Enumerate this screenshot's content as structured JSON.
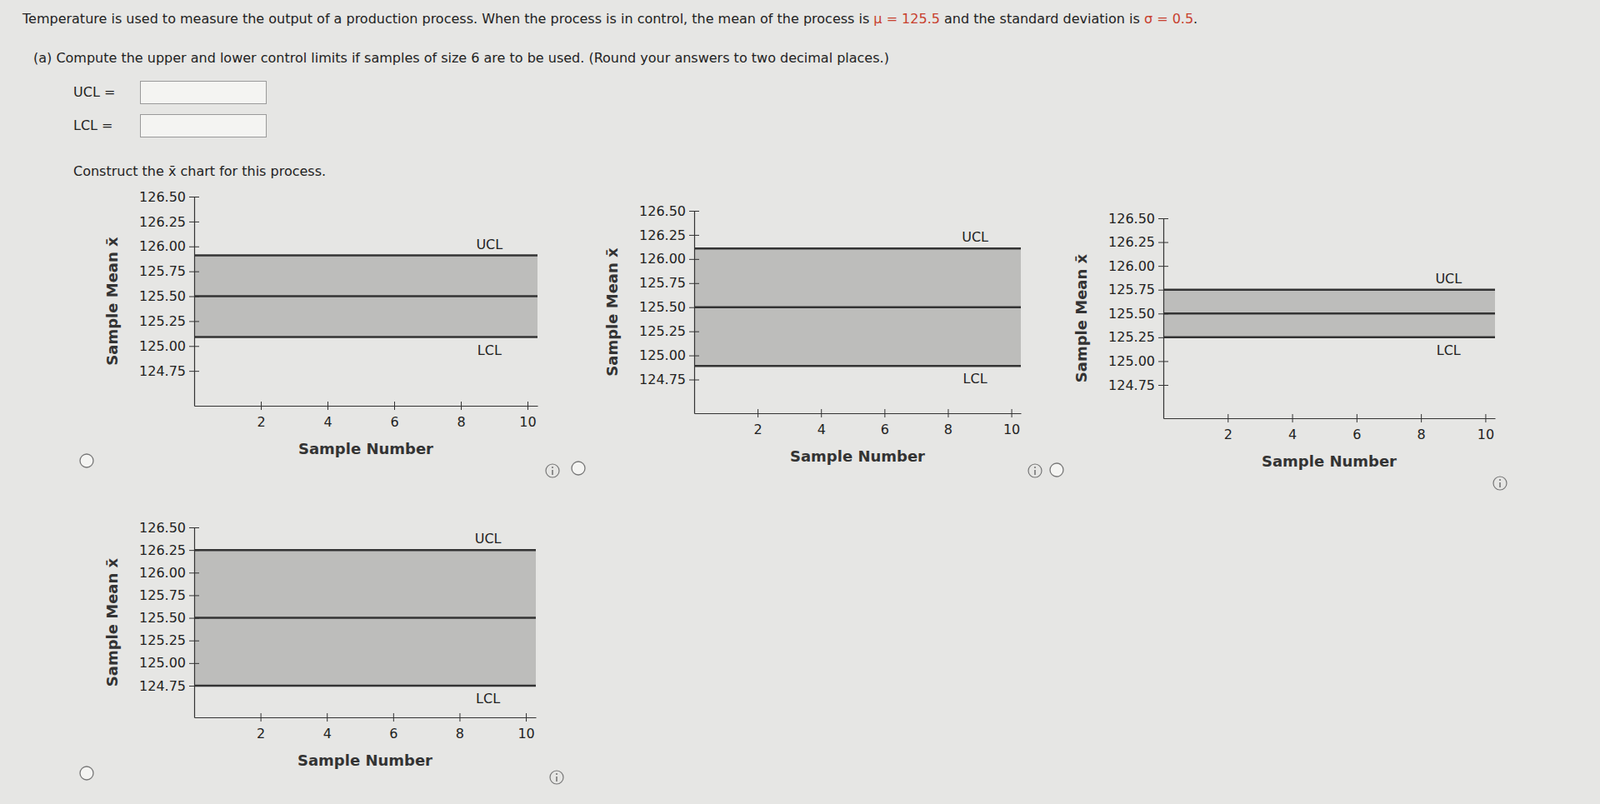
{
  "question": {
    "intro": "Temperature is used to measure the output of a production process. When the process is in control, the mean of the process is ",
    "mu": "μ = 125.5",
    "mid": " and the standard deviation is ",
    "sigma": "σ = 0.5",
    "end": "."
  },
  "part_a": {
    "prompt": "(a)  Compute the upper and lower control limits if samples of size 6 are to be used. (Round your answers to two decimal places.)",
    "ucl_label": "UCL =",
    "lcl_label": "LCL =",
    "chart_prompt": "Construct the x̄ chart for this process."
  },
  "chart_data": [
    {
      "type": "line",
      "x_label": "Sample Number",
      "y_label": "Sample Mean x̄",
      "x": [
        0,
        10.3
      ],
      "series": [
        {
          "name": "UCL",
          "color": "#333333",
          "values": [
            125.91,
            125.91
          ]
        },
        {
          "color": "#333333",
          "values": [
            125.5,
            125.5
          ]
        },
        {
          "name": "LCL",
          "color": "#333333",
          "values": [
            125.09,
            125.09
          ]
        }
      ],
      "xlim": [
        0,
        10.3
      ],
      "ylim": [
        124.4,
        126.5
      ],
      "xticks": [
        2,
        4,
        6,
        8,
        10
      ],
      "yticks": [
        124.75,
        {
          "value": 125,
          "label": "125.00"
        },
        125.25,
        {
          "value": 125.5,
          "label": "125.50"
        },
        125.75,
        {
          "value": 126,
          "label": "126.00"
        },
        126.25,
        {
          "value": 126.5,
          "label": "126.50"
        }
      ]
    },
    {
      "type": "line",
      "x_label": "Sample Number",
      "y_label": "Sample Mean x̄",
      "x": [
        0,
        10.3
      ],
      "series": [
        {
          "name": "UCL",
          "color": "#333333",
          "values": [
            126.11,
            126.11
          ]
        },
        {
          "color": "#333333",
          "values": [
            125.5,
            125.5
          ]
        },
        {
          "name": "LCL",
          "color": "#333333",
          "values": [
            124.89,
            124.89
          ]
        }
      ],
      "xlim": [
        0,
        10.3
      ],
      "ylim": [
        124.4,
        126.5
      ],
      "xticks": [
        2,
        4,
        6,
        8,
        10
      ],
      "yticks": [
        124.75,
        {
          "value": 125,
          "label": "125.00"
        },
        125.25,
        {
          "value": 125.5,
          "label": "125.50"
        },
        125.75,
        {
          "value": 126,
          "label": "126.00"
        },
        126.25,
        {
          "value": 126.5,
          "label": "126.50"
        }
      ]
    },
    {
      "type": "line",
      "x_label": "Sample Number",
      "y_label": "Sample Mean x̄",
      "x": [
        0,
        10.3
      ],
      "series": [
        {
          "name": "UCL",
          "color": "#333333",
          "values": [
            125.75,
            125.75
          ]
        },
        {
          "color": "#333333",
          "values": [
            125.5,
            125.5
          ]
        },
        {
          "name": "LCL",
          "color": "#333333",
          "values": [
            125.25,
            125.25
          ]
        }
      ],
      "xlim": [
        0,
        10.3
      ],
      "ylim": [
        124.4,
        126.5
      ],
      "xticks": [
        2,
        4,
        6,
        8,
        10
      ],
      "yticks": [
        124.75,
        {
          "value": 125,
          "label": "125.00"
        },
        125.25,
        {
          "value": 125.5,
          "label": "125.50"
        },
        125.75,
        {
          "value": 126,
          "label": "126.00"
        },
        126.25,
        {
          "value": 126.5,
          "label": "126.50"
        }
      ]
    },
    {
      "type": "line",
      "x_label": "Sample Number",
      "y_label": "Sample Mean x̄",
      "x": [
        0,
        10.3
      ],
      "series": [
        {
          "name": "UCL",
          "color": "#333333",
          "values": [
            126.25,
            126.25
          ]
        },
        {
          "color": "#333333",
          "values": [
            125.5,
            125.5
          ]
        },
        {
          "name": "LCL",
          "color": "#333333",
          "values": [
            124.75,
            124.75
          ]
        }
      ],
      "xlim": [
        0,
        10.3
      ],
      "ylim": [
        124.4,
        126.5
      ],
      "xticks": [
        2,
        4,
        6,
        8,
        10
      ],
      "yticks": [
        124.75,
        {
          "value": 125,
          "label": "125.00"
        },
        125.25,
        {
          "value": 125.5,
          "label": "125.50"
        },
        125.75,
        {
          "value": 126,
          "label": "126.00"
        },
        126.25,
        {
          "value": 126.5,
          "label": "126.50"
        }
      ]
    }
  ]
}
